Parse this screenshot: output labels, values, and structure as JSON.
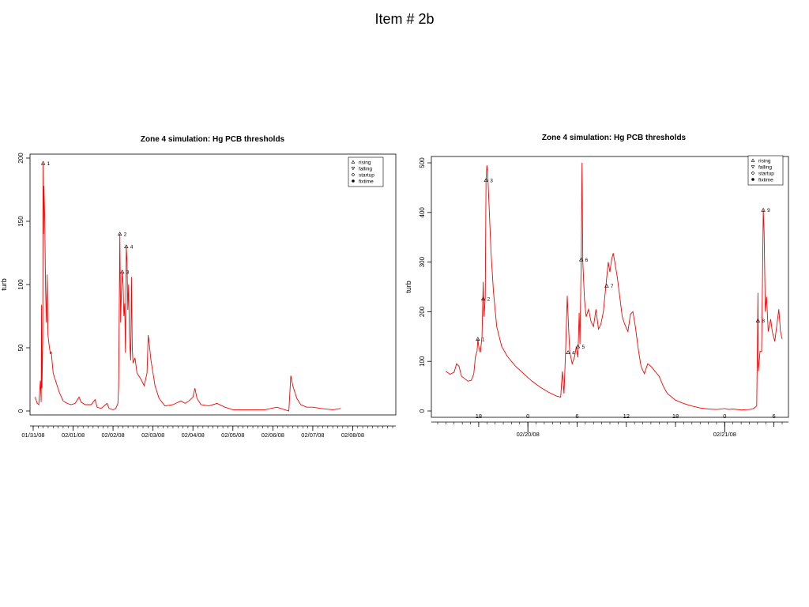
{
  "page": {
    "title": "Item # 2b"
  },
  "colors": {
    "series": "#ff0000",
    "axis": "#000000"
  },
  "chart_data": [
    {
      "type": "line",
      "title": "Zone 4 simulation: Hg PCB thresholds",
      "xlabel": "",
      "ylabel": "turb",
      "xlim": [
        0,
        9
      ],
      "ylim": [
        0,
        200
      ],
      "yticks": [
        0,
        50,
        100,
        150,
        200
      ],
      "xtick_labels": [
        {
          "x": 0,
          "label": "01/31/08"
        },
        {
          "x": 1,
          "label": "02/01/08"
        },
        {
          "x": 2,
          "label": "02/02/08"
        },
        {
          "x": 3,
          "label": "02/03/08"
        },
        {
          "x": 4,
          "label": "02/04/08"
        },
        {
          "x": 5,
          "label": "02/05/08"
        },
        {
          "x": 6,
          "label": "02/06/08"
        },
        {
          "x": 7,
          "label": "02/07/08"
        },
        {
          "x": 8,
          "label": "02/08/08"
        }
      ],
      "minor_ticks_per_major": 8,
      "legend": {
        "position": "top-right",
        "items": [
          {
            "symbol": "triangle-up",
            "label": "rising"
          },
          {
            "symbol": "triangle-down",
            "label": "falling"
          },
          {
            "symbol": "diamond",
            "label": "startup"
          },
          {
            "symbol": "dot",
            "label": "fixtime"
          }
        ]
      },
      "grid": false,
      "series": [
        {
          "points": [
            [
              0.05,
              11
            ],
            [
              0.1,
              6
            ],
            [
              0.14,
              5
            ],
            [
              0.18,
              24
            ],
            [
              0.2,
              7
            ],
            [
              0.21,
              84
            ],
            [
              0.22,
              18
            ],
            [
              0.24,
              55
            ],
            [
              0.25,
              196
            ],
            [
              0.26,
              140
            ],
            [
              0.27,
              178
            ],
            [
              0.29,
              150
            ],
            [
              0.31,
              95
            ],
            [
              0.33,
              70
            ],
            [
              0.35,
              108
            ],
            [
              0.37,
              60
            ],
            [
              0.4,
              52
            ],
            [
              0.43,
              45
            ],
            [
              0.45,
              47
            ],
            [
              0.5,
              30
            ],
            [
              0.58,
              22
            ],
            [
              0.65,
              15
            ],
            [
              0.75,
              8
            ],
            [
              0.85,
              6
            ],
            [
              0.95,
              5
            ],
            [
              1.05,
              6
            ],
            [
              1.15,
              11
            ],
            [
              1.2,
              7
            ],
            [
              1.3,
              5
            ],
            [
              1.45,
              5
            ],
            [
              1.55,
              9
            ],
            [
              1.6,
              3
            ],
            [
              1.7,
              2
            ],
            [
              1.85,
              6
            ],
            [
              1.9,
              2
            ],
            [
              2.0,
              1
            ],
            [
              2.07,
              2
            ],
            [
              2.12,
              6
            ],
            [
              2.14,
              20
            ],
            [
              2.16,
              100
            ],
            [
              2.17,
              140
            ],
            [
              2.19,
              70
            ],
            [
              2.21,
              95
            ],
            [
              2.23,
              110
            ],
            [
              2.25,
              100
            ],
            [
              2.27,
              75
            ],
            [
              2.29,
              85
            ],
            [
              2.31,
              46
            ],
            [
              2.33,
              130
            ],
            [
              2.35,
              118
            ],
            [
              2.37,
              80
            ],
            [
              2.39,
              100
            ],
            [
              2.41,
              60
            ],
            [
              2.44,
              40
            ],
            [
              2.46,
              106
            ],
            [
              2.48,
              50
            ],
            [
              2.5,
              38
            ],
            [
              2.55,
              42
            ],
            [
              2.6,
              30
            ],
            [
              2.7,
              25
            ],
            [
              2.78,
              20
            ],
            [
              2.85,
              30
            ],
            [
              2.88,
              60
            ],
            [
              2.9,
              55
            ],
            [
              2.95,
              40
            ],
            [
              3.05,
              20
            ],
            [
              3.15,
              10
            ],
            [
              3.3,
              4
            ],
            [
              3.5,
              5
            ],
            [
              3.7,
              8
            ],
            [
              3.8,
              6
            ],
            [
              3.9,
              8
            ],
            [
              4.0,
              11
            ],
            [
              4.05,
              18
            ],
            [
              4.1,
              10
            ],
            [
              4.2,
              5
            ],
            [
              4.4,
              4
            ],
            [
              4.6,
              6
            ],
            [
              4.8,
              3
            ],
            [
              5.0,
              1
            ],
            [
              5.4,
              1
            ],
            [
              5.8,
              1
            ],
            [
              6.1,
              3
            ],
            [
              6.3,
              1
            ],
            [
              6.4,
              0
            ],
            [
              6.45,
              28
            ],
            [
              6.5,
              20
            ],
            [
              6.55,
              15
            ],
            [
              6.6,
              10
            ],
            [
              6.7,
              5
            ],
            [
              6.85,
              3
            ],
            [
              7.0,
              3
            ],
            [
              7.2,
              2
            ],
            [
              7.5,
              1
            ],
            [
              7.7,
              2
            ]
          ]
        }
      ],
      "markers": [
        {
          "x": 0.25,
          "y": 196,
          "symbol": "triangle-up",
          "label": "1"
        },
        {
          "x": 2.17,
          "y": 140,
          "symbol": "triangle-up",
          "label": "2"
        },
        {
          "x": 2.23,
          "y": 110,
          "symbol": "triangle-up",
          "label": "3"
        },
        {
          "x": 2.33,
          "y": 130,
          "symbol": "triangle-up",
          "label": "4"
        }
      ]
    },
    {
      "type": "line",
      "title": "Zone 4 simulation: Hg PCB thresholds",
      "xlabel": "",
      "ylabel": "turb",
      "xlim": [
        13,
        55
      ],
      "ylim": [
        0,
        500
      ],
      "yticks": [
        0,
        100,
        200,
        300,
        400,
        500
      ],
      "xtick_labels": [
        {
          "x": 18,
          "label": "18"
        },
        {
          "x": 24,
          "label": "0"
        },
        {
          "x": 30,
          "label": "6"
        },
        {
          "x": 36,
          "label": "12"
        },
        {
          "x": 42,
          "label": "18"
        },
        {
          "x": 48,
          "label": "0"
        },
        {
          "x": 54,
          "label": "6"
        }
      ],
      "date_labels": [
        {
          "x": 24,
          "label": "02/20/08"
        },
        {
          "x": 48,
          "label": "02/21/08"
        }
      ],
      "minor_tick_step": 1,
      "legend": {
        "position": "top-right",
        "items": [
          {
            "symbol": "triangle-up",
            "label": "rising"
          },
          {
            "symbol": "triangle-down",
            "label": "falling"
          },
          {
            "symbol": "diamond",
            "label": "startup"
          },
          {
            "symbol": "dot",
            "label": "fixtime"
          }
        ]
      },
      "grid": false,
      "series": [
        {
          "points": [
            [
              14,
              80
            ],
            [
              14.5,
              74
            ],
            [
              15,
              78
            ],
            [
              15.3,
              95
            ],
            [
              15.6,
              90
            ],
            [
              15.9,
              70
            ],
            [
              16.3,
              65
            ],
            [
              16.7,
              60
            ],
            [
              17.1,
              62
            ],
            [
              17.4,
              75
            ],
            [
              17.6,
              110
            ],
            [
              17.8,
              120
            ],
            [
              17.9,
              145
            ],
            [
              18.0,
              130
            ],
            [
              18.2,
              118
            ],
            [
              18.4,
              150
            ],
            [
              18.55,
              260
            ],
            [
              18.65,
              190
            ],
            [
              18.8,
              230
            ],
            [
              18.9,
              465
            ],
            [
              19.0,
              495
            ],
            [
              19.1,
              480
            ],
            [
              19.3,
              400
            ],
            [
              19.5,
              320
            ],
            [
              19.8,
              240
            ],
            [
              20.2,
              170
            ],
            [
              20.8,
              130
            ],
            [
              21.5,
              110
            ],
            [
              22.5,
              90
            ],
            [
              23.5,
              75
            ],
            [
              24.5,
              60
            ],
            [
              25.5,
              48
            ],
            [
              26.5,
              38
            ],
            [
              27.5,
              30
            ],
            [
              28.0,
              28
            ],
            [
              28.2,
              80
            ],
            [
              28.4,
              35
            ],
            [
              28.6,
              120
            ],
            [
              28.8,
              232
            ],
            [
              28.95,
              170
            ],
            [
              29.1,
              120
            ],
            [
              29.4,
              95
            ],
            [
              29.7,
              110
            ],
            [
              29.9,
              130
            ],
            [
              30.1,
              108
            ],
            [
              30.25,
              198
            ],
            [
              30.35,
              135
            ],
            [
              30.5,
              310
            ],
            [
              30.6,
              500
            ],
            [
              30.7,
              300
            ],
            [
              30.9,
              225
            ],
            [
              31.1,
              190
            ],
            [
              31.4,
              205
            ],
            [
              31.7,
              180
            ],
            [
              32.0,
              170
            ],
            [
              32.3,
              205
            ],
            [
              32.6,
              165
            ],
            [
              32.9,
              175
            ],
            [
              33.2,
              200
            ],
            [
              33.5,
              250
            ],
            [
              33.8,
              300
            ],
            [
              34.0,
              280
            ],
            [
              34.2,
              305
            ],
            [
              34.4,
              318
            ],
            [
              34.6,
              300
            ],
            [
              34.9,
              270
            ],
            [
              35.2,
              230
            ],
            [
              35.5,
              190
            ],
            [
              35.8,
              175
            ],
            [
              36.2,
              160
            ],
            [
              36.5,
              195
            ],
            [
              36.8,
              200
            ],
            [
              37.1,
              170
            ],
            [
              37.5,
              120
            ],
            [
              37.8,
              90
            ],
            [
              38.2,
              75
            ],
            [
              38.6,
              95
            ],
            [
              39.0,
              90
            ],
            [
              39.5,
              80
            ],
            [
              40.0,
              70
            ],
            [
              40.5,
              50
            ],
            [
              41.0,
              35
            ],
            [
              42.0,
              22
            ],
            [
              43.0,
              15
            ],
            [
              44.0,
              10
            ],
            [
              45.0,
              6
            ],
            [
              46.0,
              4
            ],
            [
              47.0,
              3
            ],
            [
              48.0,
              5
            ],
            [
              48.5,
              3
            ],
            [
              49.0,
              4
            ],
            [
              50.0,
              2
            ],
            [
              51.0,
              3
            ],
            [
              51.5,
              5
            ],
            [
              51.9,
              10
            ],
            [
              52.0,
              160
            ],
            [
              52.05,
              238
            ],
            [
              52.1,
              80
            ],
            [
              52.3,
              120
            ],
            [
              52.5,
              120
            ],
            [
              52.6,
              260
            ],
            [
              52.7,
              405
            ],
            [
              52.8,
              360
            ],
            [
              52.95,
              200
            ],
            [
              53.1,
              230
            ],
            [
              53.3,
              160
            ],
            [
              53.6,
              185
            ],
            [
              53.8,
              160
            ],
            [
              54.1,
              140
            ],
            [
              54.4,
              180
            ],
            [
              54.6,
              205
            ],
            [
              54.8,
              160
            ],
            [
              55.0,
              145
            ]
          ]
        }
      ],
      "markers": [
        {
          "x": 17.9,
          "y": 145,
          "symbol": "triangle-up",
          "label": "1"
        },
        {
          "x": 18.55,
          "y": 226,
          "symbol": "triangle-up",
          "label": "2"
        },
        {
          "x": 18.9,
          "y": 465,
          "symbol": "triangle-up",
          "label": "3"
        },
        {
          "x": 28.9,
          "y": 118,
          "symbol": "triangle-up",
          "label": "4"
        },
        {
          "x": 30.1,
          "y": 130,
          "symbol": "triangle-up",
          "label": "5"
        },
        {
          "x": 30.5,
          "y": 305,
          "symbol": "triangle-up",
          "label": "6"
        },
        {
          "x": 33.6,
          "y": 252,
          "symbol": "triangle-up",
          "label": "7"
        },
        {
          "x": 52.05,
          "y": 182,
          "symbol": "triangle-up",
          "label": "8"
        },
        {
          "x": 52.7,
          "y": 405,
          "symbol": "triangle-up",
          "label": "9"
        }
      ]
    }
  ]
}
